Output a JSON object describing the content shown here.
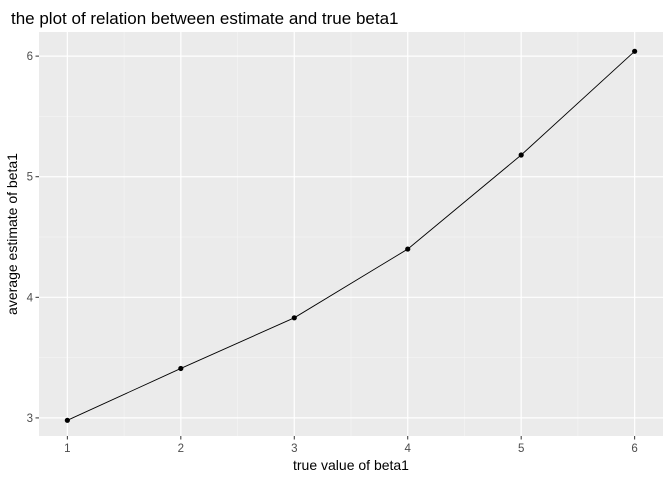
{
  "chart_data": {
    "type": "line",
    "title": "the plot of relation between estimate and true beta1",
    "xlabel": "true value of beta1",
    "ylabel": "average estimate of beta1",
    "x": [
      1,
      2,
      3,
      4,
      5,
      6
    ],
    "y": [
      2.98,
      3.41,
      3.83,
      4.4,
      5.18,
      6.04
    ],
    "xlim": [
      0.75,
      6.25
    ],
    "ylim": [
      2.85,
      6.2
    ],
    "xticks": [
      1,
      2,
      3,
      4,
      5,
      6
    ],
    "yticks": [
      3,
      4,
      5,
      6
    ],
    "xtick_labels": [
      "1",
      "2",
      "3",
      "4",
      "5",
      "6"
    ],
    "ytick_labels": [
      "3",
      "4",
      "5",
      "6"
    ],
    "markers": true,
    "grid": true,
    "colors": {
      "panel_background": "#ebebeb",
      "grid_major": "#ffffff",
      "grid_minor": "#f5f5f5",
      "line": "#000000",
      "point": "#000000",
      "tick_label": "#4d4d4d",
      "tick_mark": "#333333"
    }
  }
}
